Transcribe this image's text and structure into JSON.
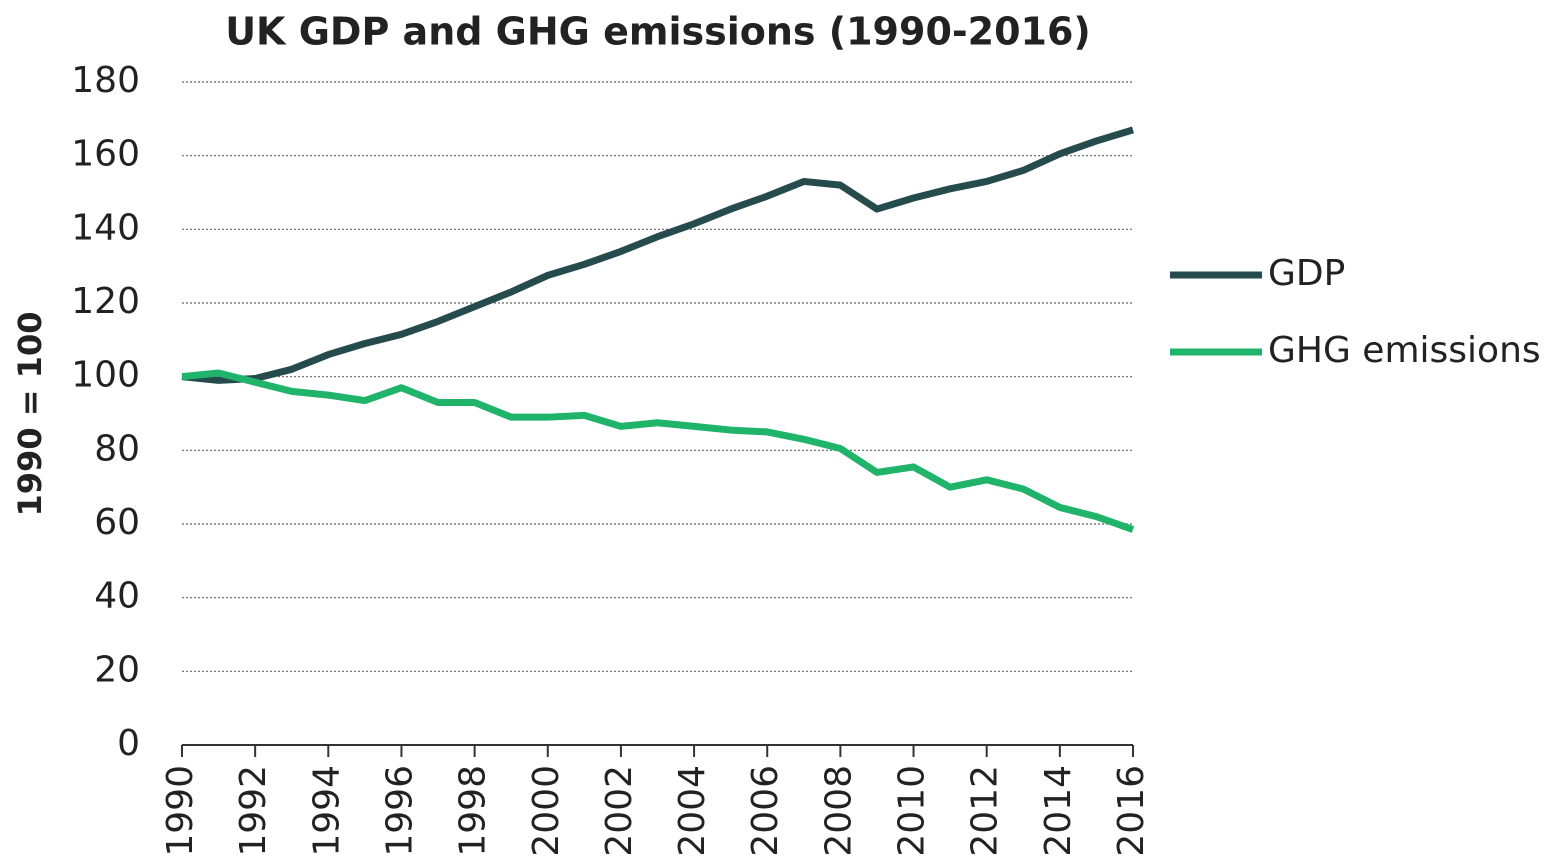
{
  "chart_data": {
    "type": "line",
    "title": "UK GDP and GHG emissions (1990-2016)",
    "ylabel": "1990 = 100",
    "x": [
      1990,
      1991,
      1992,
      1993,
      1994,
      1995,
      1996,
      1997,
      1998,
      1999,
      2000,
      2001,
      2002,
      2003,
      2004,
      2005,
      2006,
      2007,
      2008,
      2009,
      2010,
      2011,
      2012,
      2013,
      2014,
      2015,
      2016
    ],
    "series": [
      {
        "name": "GDP",
        "color": "#264b4d",
        "values": [
          100,
          99,
          99.5,
          102,
          106,
          109,
          111.5,
          115,
          119,
          123,
          127.5,
          130.5,
          134,
          138,
          141.5,
          145.5,
          149,
          153,
          152,
          145.5,
          148.5,
          151,
          153,
          156,
          160.5,
          164,
          167
        ]
      },
      {
        "name": "GHG emissions",
        "color": "#1fb46a",
        "values": [
          100,
          101,
          98.5,
          96,
          95,
          93.5,
          97,
          93,
          93,
          89,
          89,
          89.5,
          86.5,
          87.5,
          86.5,
          85.5,
          85,
          83,
          80.5,
          74,
          75.5,
          70,
          72,
          69.5,
          64.5,
          62,
          58.5
        ]
      }
    ],
    "xlim": [
      1990,
      2016
    ],
    "xticks": [
      1990,
      1992,
      1994,
      1996,
      1998,
      2000,
      2002,
      2004,
      2006,
      2008,
      2010,
      2012,
      2014,
      2016
    ],
    "ylim": [
      0,
      180
    ],
    "yticks": [
      0,
      20,
      40,
      60,
      80,
      100,
      120,
      140,
      160,
      180
    ],
    "grid": true,
    "legend": "right"
  }
}
